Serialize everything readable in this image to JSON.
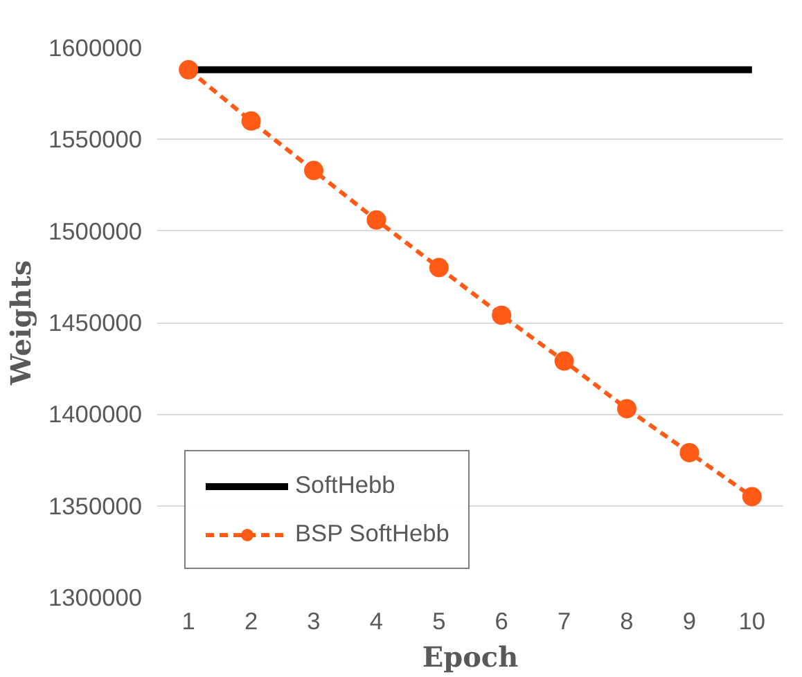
{
  "chart_data": {
    "type": "line",
    "xlabel": "Epoch",
    "ylabel": "Weights",
    "categories": [
      "1",
      "2",
      "3",
      "4",
      "5",
      "6",
      "7",
      "8",
      "9",
      "10"
    ],
    "series": [
      {
        "name": "SoftHebb",
        "color": "#000000",
        "line_style": "solid",
        "marker": "none",
        "values": [
          1588000,
          1588000,
          1588000,
          1588000,
          1588000,
          1588000,
          1588000,
          1588000,
          1588000,
          1588000
        ]
      },
      {
        "name": "BSP SoftHebb",
        "color": "#ff5b16",
        "line_style": "dashed",
        "marker": "circle",
        "values": [
          1588000,
          1560000,
          1533000,
          1506000,
          1480000,
          1454000,
          1429000,
          1403000,
          1379000,
          1355000
        ]
      }
    ],
    "ylim": [
      1300000,
      1600000
    ],
    "yticks": [
      1300000,
      1350000,
      1400000,
      1450000,
      1500000,
      1550000,
      1600000
    ],
    "grid": "y",
    "legend": "bottom left"
  }
}
